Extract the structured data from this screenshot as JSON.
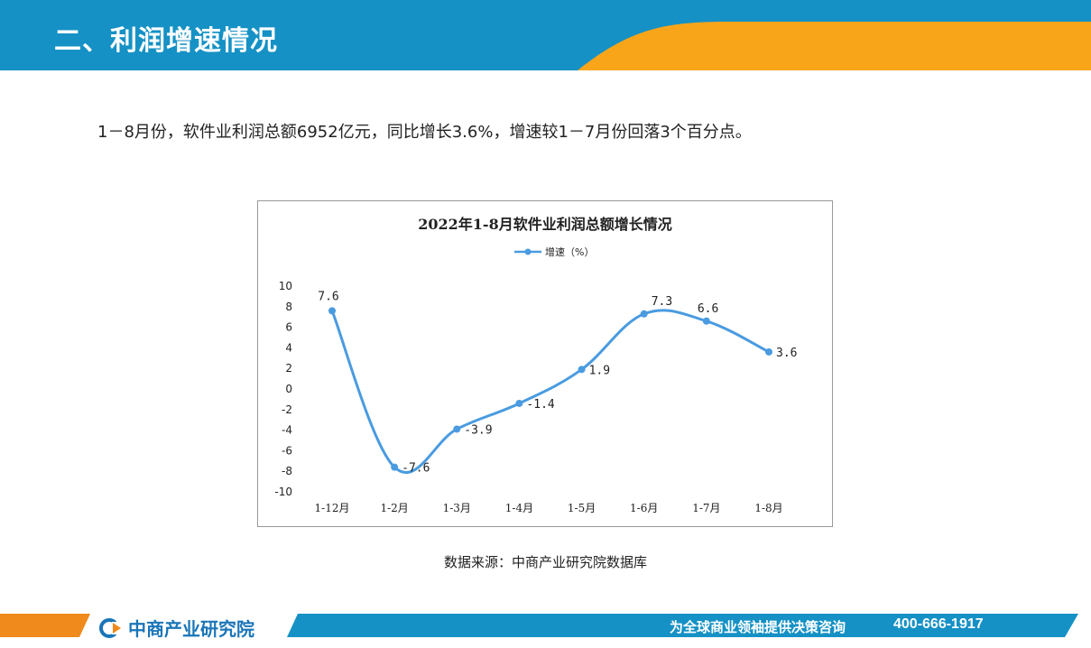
{
  "header": {
    "title": "二、利润增速情况"
  },
  "summary": {
    "text": "1－8月份，软件业利润总额6952亿元，同比增长3.6%，增速较1－7月份回落3个百分点。"
  },
  "chart_data": {
    "type": "line",
    "title": "2022年1-8月软件业利润总额增长情况",
    "categories": [
      "1-12月",
      "1-2月",
      "1-3月",
      "1-4月",
      "1-5月",
      "1-6月",
      "1-7月",
      "1-8月"
    ],
    "series": [
      {
        "name": "增速（%）",
        "values": [
          7.6,
          -7.6,
          -3.9,
          -1.4,
          1.9,
          7.3,
          6.6,
          3.6
        ],
        "data_labels": [
          "7.6",
          "-7.6",
          "-3.9",
          "-1.4",
          "1.9",
          "7.3",
          "6.6",
          "3.6"
        ]
      }
    ],
    "yticks": [
      "10",
      "8",
      "6",
      "4",
      "2",
      "0",
      "-2",
      "-4",
      "-6",
      "-8",
      "-10"
    ],
    "ylim": [
      -10,
      10
    ],
    "grid": false,
    "legend": "top",
    "line_color": "#4a9be0"
  },
  "source": {
    "text": "数据来源：中商产业研究院数据库"
  },
  "footer": {
    "logo_text": "中商产业研究院",
    "slogan": "为全球商业领袖提供决策咨询",
    "phone": "400-666-1917"
  },
  "colors": {
    "header_blue": "#1591c5",
    "accent_orange": "#f9a51a",
    "footer_blue": "#1a75b8"
  }
}
